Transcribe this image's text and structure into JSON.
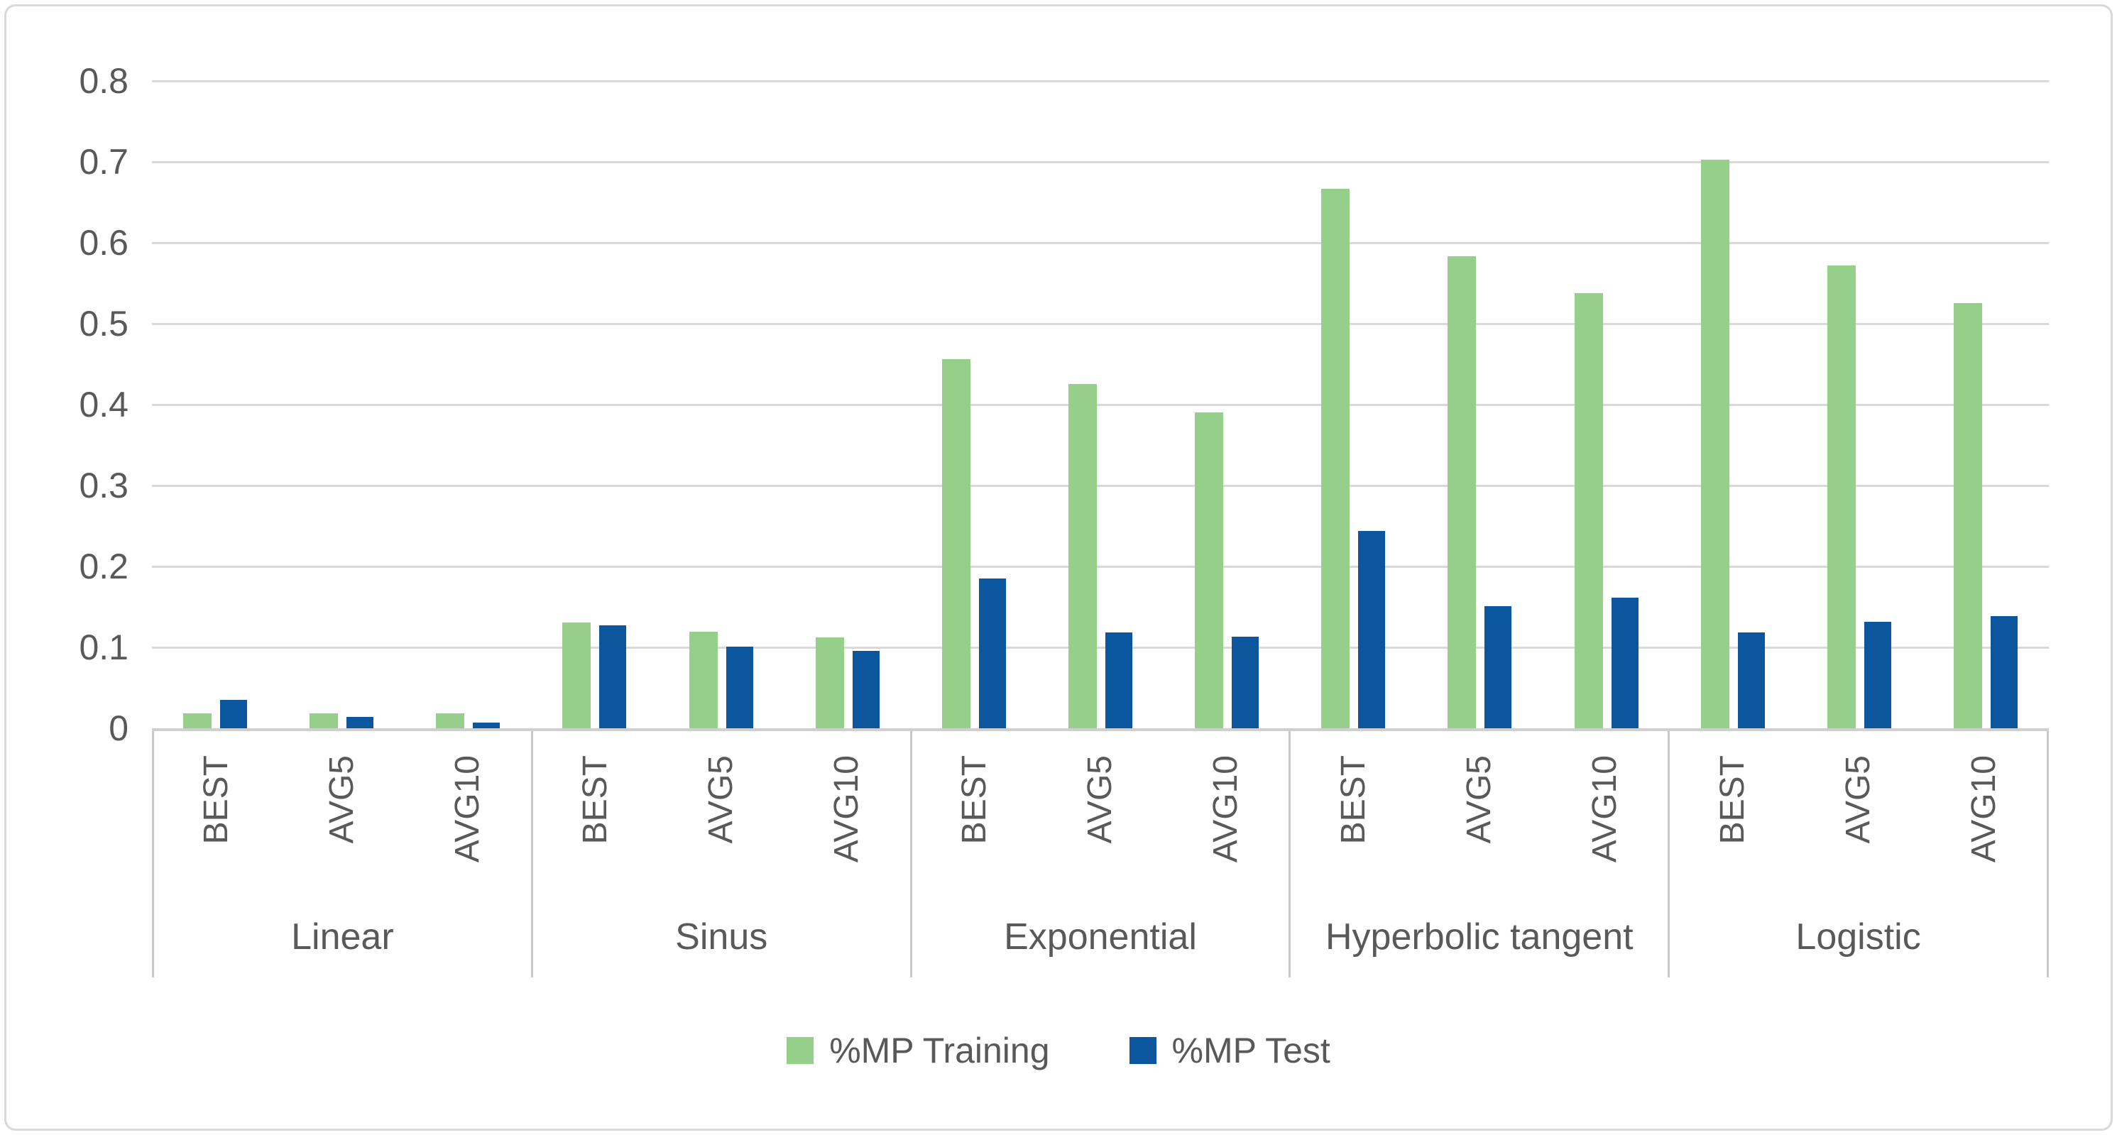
{
  "chart_data": {
    "type": "bar",
    "title": "",
    "y_axis": {
      "min": 0,
      "max": 0.8,
      "step": 0.1,
      "tick_labels": [
        "0",
        "0.1",
        "0.2",
        "0.3",
        "0.4",
        "0.5",
        "0.6",
        "0.7",
        "0.8"
      ]
    },
    "groups": [
      "Linear",
      "Sinus",
      "Exponential",
      "Hyperbolic tangent",
      "Logistic"
    ],
    "categories": [
      "BEST",
      "AVG5",
      "AVG10"
    ],
    "series": [
      {
        "name": "%MP Training",
        "color": "#96CF8A",
        "values": [
          [
            0.018,
            0.018,
            0.018
          ],
          [
            0.131,
            0.119,
            0.112
          ],
          [
            0.456,
            0.425,
            0.39
          ],
          [
            0.667,
            0.583,
            0.538
          ],
          [
            0.703,
            0.572,
            0.525
          ]
        ]
      },
      {
        "name": "%MP Test",
        "color": "#0B569D",
        "values": [
          [
            0.035,
            0.014,
            0.007
          ],
          [
            0.127,
            0.101,
            0.096
          ],
          [
            0.185,
            0.118,
            0.113
          ],
          [
            0.244,
            0.151,
            0.161
          ],
          [
            0.118,
            0.132,
            0.139
          ]
        ]
      }
    ],
    "grid": true,
    "legend_position": "bottom"
  },
  "style": {
    "training_color": "#96CF8A",
    "test_color": "#0B569D",
    "grid_color": "#D9D9D9",
    "axis_color": "#C9C9C9",
    "text_color": "#595959",
    "frame_color": "#D9D9D9",
    "background": "#FFFFFF"
  }
}
